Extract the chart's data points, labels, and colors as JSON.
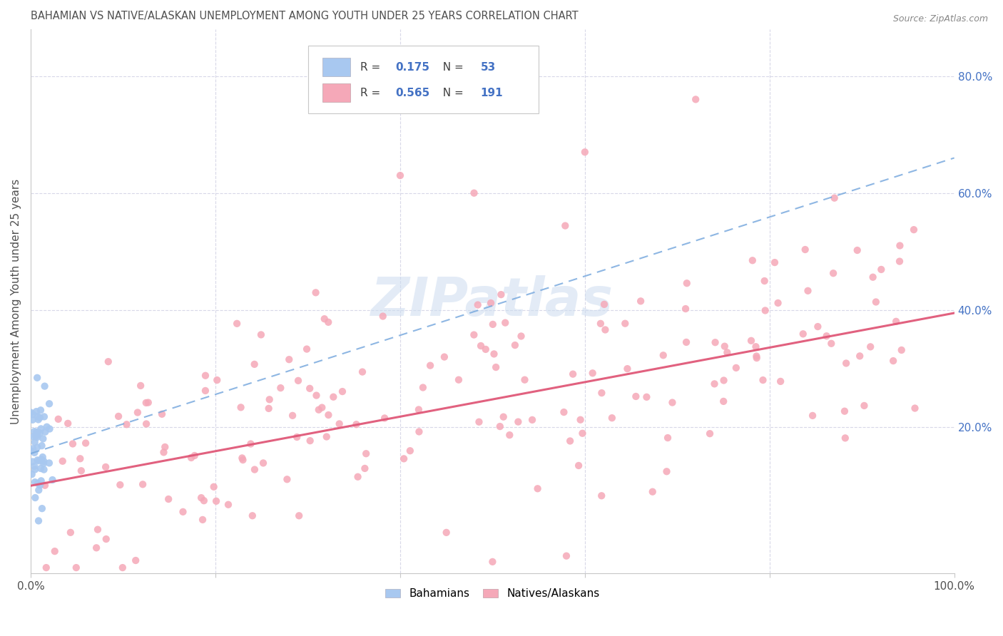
{
  "title": "BAHAMIAN VS NATIVE/ALASKAN UNEMPLOYMENT AMONG YOUTH UNDER 25 YEARS CORRELATION CHART",
  "source": "Source: ZipAtlas.com",
  "ylabel": "Unemployment Among Youth under 25 years",
  "xlim": [
    0,
    1.0
  ],
  "ylim": [
    -0.05,
    0.88
  ],
  "watermark": "ZIPatlas",
  "legend_R_blue": "0.175",
  "legend_N_blue": "53",
  "legend_R_pink": "0.565",
  "legend_N_pink": "191",
  "blue_scatter_color": "#a8c8f0",
  "pink_scatter_color": "#f5a8b8",
  "blue_line_color": "#7aaade",
  "pink_line_color": "#e05878",
  "title_color": "#505050",
  "axis_label_color": "#505050",
  "tick_label_color_right": "#4472c4",
  "background_color": "#ffffff",
  "grid_color": "#d8d8e8",
  "blue_line_start_y": 0.155,
  "blue_line_end_y": 0.66,
  "pink_line_start_y": 0.1,
  "pink_line_end_y": 0.395
}
